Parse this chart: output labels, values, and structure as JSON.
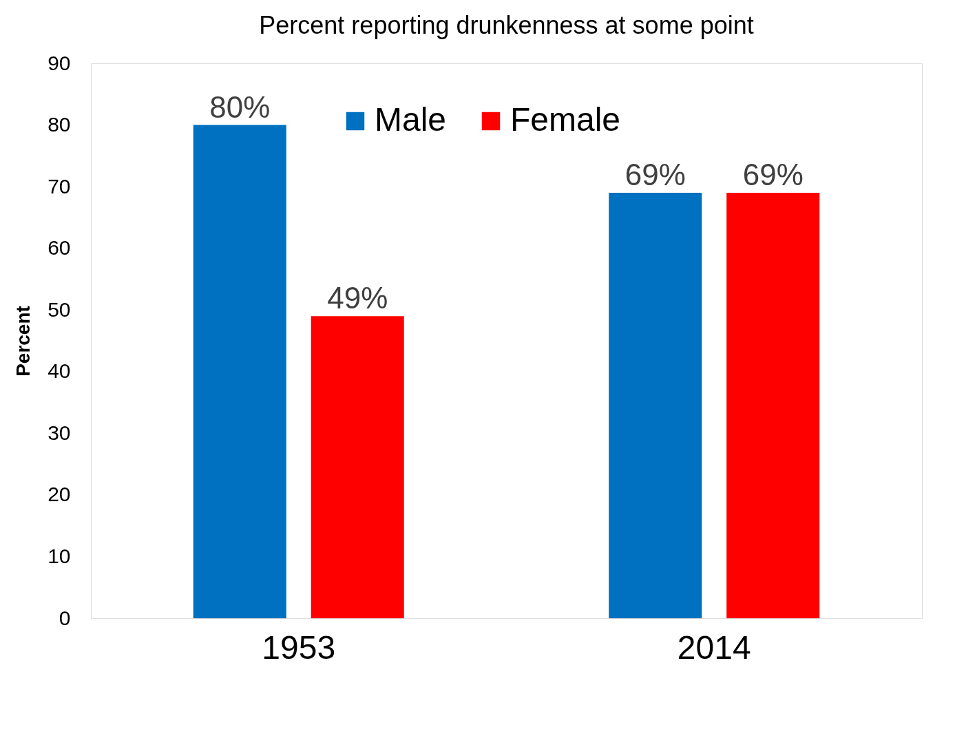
{
  "chart_data": {
    "type": "bar",
    "title": "Percent reporting drunkenness at some point",
    "ylabel": "Percent",
    "categories": [
      "1953",
      "2014"
    ],
    "series": [
      {
        "name": "Male",
        "color": "#0070c0",
        "values": [
          80,
          69
        ],
        "value_labels": [
          "80%",
          "69%"
        ]
      },
      {
        "name": "Female",
        "color": "#ff0000",
        "values": [
          49,
          69
        ],
        "value_labels": [
          "49%",
          "69%"
        ]
      }
    ],
    "ylim": [
      0,
      90
    ],
    "yticks": [
      0,
      10,
      20,
      30,
      40,
      50,
      60,
      70,
      80,
      90
    ],
    "grid": false,
    "legend": "top"
  }
}
